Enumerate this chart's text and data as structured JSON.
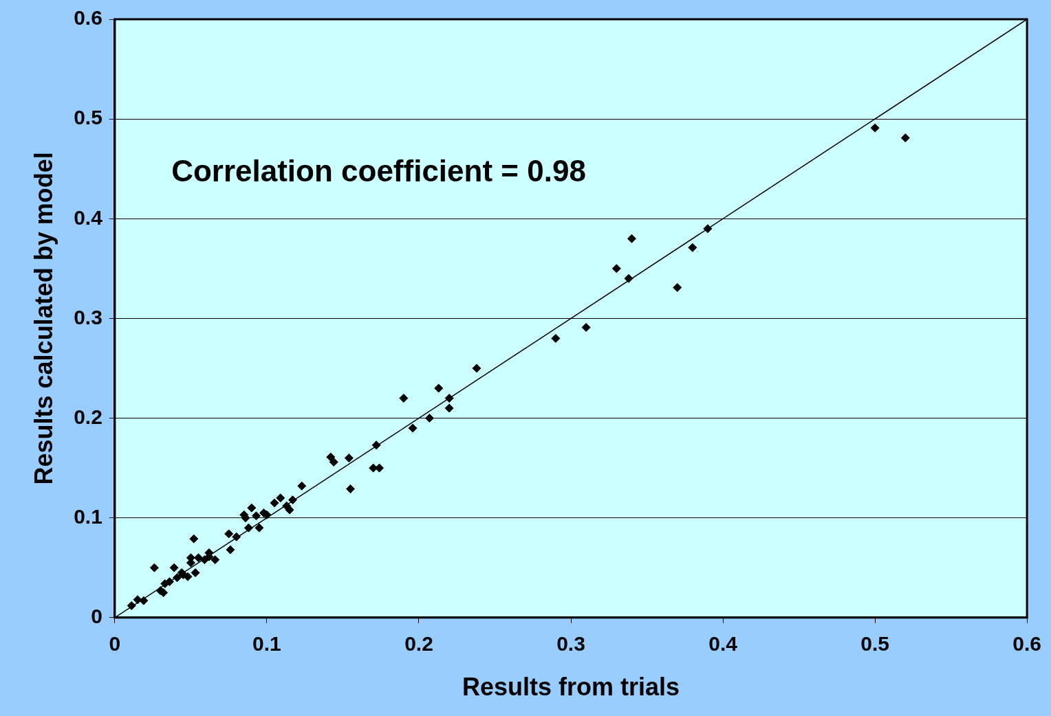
{
  "chart_data": {
    "type": "scatter",
    "xlabel": "Results from trials",
    "ylabel": "Results calculated by model",
    "annotations": [
      "Correlation coefficient = 0.98"
    ],
    "xlim": [
      0,
      0.6
    ],
    "xticks": [
      0,
      0.1,
      0.2,
      0.3,
      0.4,
      0.5,
      0.6
    ],
    "ylim": [
      0,
      0.6
    ],
    "yticks": [
      0,
      0.1,
      0.2,
      0.3,
      0.4,
      0.5,
      0.6
    ],
    "grid": "y",
    "legend": false,
    "series": [
      {
        "marker": "diamond",
        "color": "#000000",
        "x": [
          0.011,
          0.015,
          0.019,
          0.026,
          0.03,
          0.032,
          0.033,
          0.036,
          0.039,
          0.041,
          0.044,
          0.045,
          0.048,
          0.05,
          0.05,
          0.052,
          0.053,
          0.055,
          0.059,
          0.062,
          0.062,
          0.066,
          0.075,
          0.076,
          0.08,
          0.085,
          0.086,
          0.088,
          0.09,
          0.093,
          0.095,
          0.098,
          0.1,
          0.105,
          0.109,
          0.113,
          0.115,
          0.117,
          0.123,
          0.142,
          0.144,
          0.154,
          0.155,
          0.17,
          0.174,
          0.172,
          0.19,
          0.196,
          0.207,
          0.213,
          0.22,
          0.22,
          0.238,
          0.29,
          0.31,
          0.33,
          0.338,
          0.34,
          0.37,
          0.38,
          0.39,
          0.5,
          0.52
        ],
        "values": [
          0.012,
          0.018,
          0.017,
          0.05,
          0.027,
          0.025,
          0.034,
          0.036,
          0.05,
          0.04,
          0.045,
          0.043,
          0.041,
          0.055,
          0.06,
          0.079,
          0.045,
          0.06,
          0.058,
          0.061,
          0.065,
          0.058,
          0.084,
          0.068,
          0.081,
          0.103,
          0.1,
          0.09,
          0.11,
          0.102,
          0.09,
          0.105,
          0.103,
          0.115,
          0.12,
          0.112,
          0.108,
          0.118,
          0.132,
          0.161,
          0.156,
          0.16,
          0.129,
          0.15,
          0.15,
          0.173,
          0.22,
          0.19,
          0.2,
          0.23,
          0.22,
          0.21,
          0.25,
          0.28,
          0.291,
          0.35,
          0.34,
          0.38,
          0.331,
          0.371,
          0.39,
          0.491,
          0.481
        ]
      },
      {
        "type": "line",
        "marker": "none",
        "color": "#000000",
        "x": [
          0,
          0.6
        ],
        "values": [
          0,
          0.6
        ]
      }
    ]
  }
}
